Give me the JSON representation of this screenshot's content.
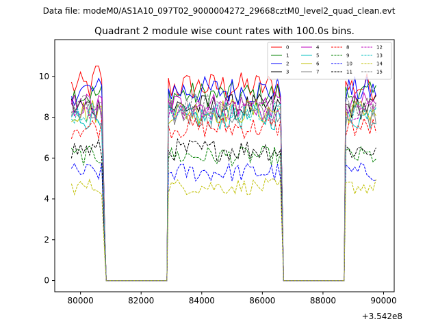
{
  "chart_data": {
    "type": "line",
    "suptitle": "Data file: modeM0/AS1A10_097T02_9000004272_29668cztM0_level2_quad_clean.evt",
    "title": "Quadrant 2 module wise count rates with 100.0s bins.",
    "xlabel": "",
    "ylabel": "",
    "x_offset_label": "+3.542e8",
    "xlim": [
      79150,
      90350
    ],
    "ylim": [
      -0.55,
      11.8
    ],
    "xticks": [
      80000,
      82000,
      84000,
      86000,
      88000,
      90000
    ],
    "xtick_labels": [
      "80000",
      "82000",
      "84000",
      "86000",
      "88000",
      "90000"
    ],
    "yticks": [
      0,
      2,
      4,
      6,
      8,
      10
    ],
    "ytick_labels": [
      "0",
      "2",
      "4",
      "6",
      "8",
      "10"
    ],
    "grid": false,
    "legend_position": "upper right",
    "segments": [
      {
        "start": 79700,
        "end": 80800,
        "zero_from": 80800,
        "zero_to": 82900
      },
      {
        "start": 82900,
        "end": 86650,
        "zero_from": 86650,
        "zero_to": 88750
      },
      {
        "start": 88750,
        "end": 89780,
        "zero_from": null,
        "zero_to": null
      }
    ],
    "bin_width": 100,
    "series": [
      {
        "name": "0",
        "color": "#ff0000",
        "dash": false,
        "mean": 9.5,
        "noise": 0.45
      },
      {
        "name": "1",
        "color": "#008000",
        "dash": false,
        "mean": 9.1,
        "noise": 0.4
      },
      {
        "name": "2",
        "color": "#0000ff",
        "dash": false,
        "mean": 9.3,
        "noise": 0.45
      },
      {
        "name": "3",
        "color": "#000000",
        "dash": false,
        "mean": 8.5,
        "noise": 0.4
      },
      {
        "name": "4",
        "color": "#bf00bf",
        "dash": false,
        "mean": 8.6,
        "noise": 0.4
      },
      {
        "name": "5",
        "color": "#00bfbf",
        "dash": false,
        "mean": 8.0,
        "noise": 0.4
      },
      {
        "name": "6",
        "color": "#bfbf00",
        "dash": false,
        "mean": 8.3,
        "noise": 0.4
      },
      {
        "name": "7",
        "color": "#808080",
        "dash": false,
        "mean": 8.1,
        "noise": 0.4
      },
      {
        "name": "8",
        "color": "#ff0000",
        "dash": true,
        "mean": 7.5,
        "noise": 0.35
      },
      {
        "name": "9",
        "color": "#008000",
        "dash": true,
        "mean": 6.1,
        "noise": 0.3
      },
      {
        "name": "10",
        "color": "#0000ff",
        "dash": true,
        "mean": 5.3,
        "noise": 0.3
      },
      {
        "name": "11",
        "color": "#000000",
        "dash": true,
        "mean": 6.4,
        "noise": 0.35
      },
      {
        "name": "12",
        "color": "#bf00bf",
        "dash": true,
        "mean": 8.4,
        "noise": 0.35
      },
      {
        "name": "13",
        "color": "#00bfbf",
        "dash": true,
        "mean": 8.2,
        "noise": 0.35
      },
      {
        "name": "14",
        "color": "#bfbf00",
        "dash": true,
        "mean": 4.6,
        "noise": 0.25
      },
      {
        "name": "15",
        "color": "#808080",
        "dash": true,
        "mean": 8.6,
        "noise": 0.35
      }
    ]
  }
}
